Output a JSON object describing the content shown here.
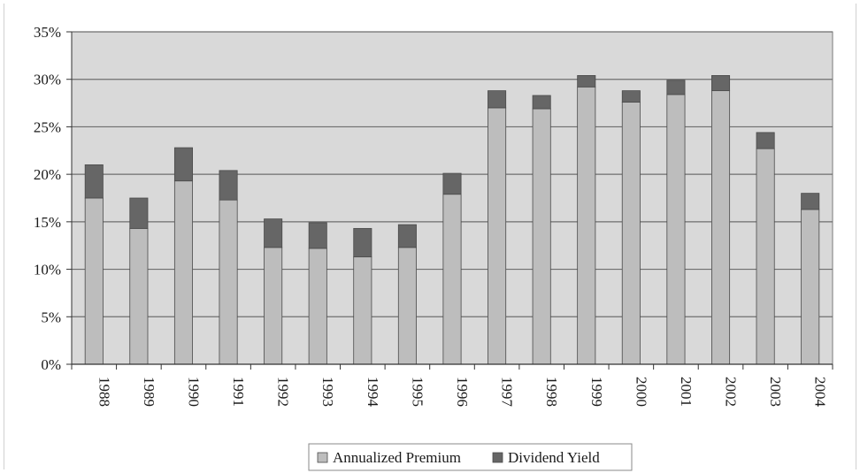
{
  "chart_data": {
    "type": "bar",
    "stacked": true,
    "categories": [
      "1988",
      "1989",
      "1990",
      "1991",
      "1992",
      "1993",
      "1994",
      "1995",
      "1996",
      "1997",
      "1998",
      "1999",
      "2000",
      "2001",
      "2002",
      "2003",
      "2004"
    ],
    "series": [
      {
        "name": "Annualized Premium",
        "color": "#bdbdbd",
        "values": [
          17.5,
          14.3,
          19.3,
          17.3,
          12.3,
          12.2,
          11.3,
          12.3,
          17.9,
          27.0,
          26.9,
          29.2,
          27.6,
          28.4,
          28.8,
          22.7,
          16.3
        ]
      },
      {
        "name": "Dividend Yield",
        "color": "#666666",
        "values": [
          3.5,
          3.2,
          3.5,
          3.1,
          3.0,
          2.7,
          3.0,
          2.4,
          2.2,
          1.8,
          1.4,
          1.2,
          1.2,
          1.5,
          1.6,
          1.7,
          1.7
        ]
      }
    ],
    "ylim": [
      0,
      35
    ],
    "yticks": [
      0,
      5,
      10,
      15,
      20,
      25,
      30,
      35
    ],
    "ytick_labels": [
      "0%",
      "5%",
      "10%",
      "15%",
      "20%",
      "25%",
      "30%",
      "35%"
    ],
    "title": "",
    "xlabel": "",
    "ylabel": "",
    "grid": true,
    "legend": "bottom-center",
    "plot_background": "#d9d9d9"
  }
}
